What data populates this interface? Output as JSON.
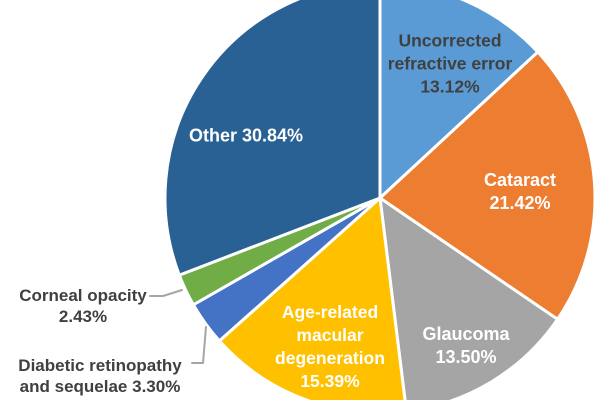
{
  "chart_data": {
    "type": "pie",
    "direction": "clockwise",
    "start_angle_deg": 0,
    "value_unit": "%",
    "slice_border_color": "#FFFFFF",
    "slices": [
      {
        "label": "Uncorrected refractive error",
        "value": 13.12,
        "color": "#5B9BD5"
      },
      {
        "label": "Cataract",
        "value": 21.42,
        "color": "#ED7D31"
      },
      {
        "label": "Glaucoma",
        "value": 13.5,
        "color": "#A5A5A5"
      },
      {
        "label": "Age-related macular degeneration",
        "value": 15.39,
        "color": "#FFC000"
      },
      {
        "label": "Diabetic retinopathy and sequelae",
        "value": 3.3,
        "color": "#4472C4"
      },
      {
        "label": "Corneal opacity",
        "value": 2.43,
        "color": "#70AD47"
      },
      {
        "label": "Other",
        "value": 30.84,
        "color": "#2A6194"
      }
    ]
  },
  "labels": {
    "uncorrected_refractive_error": {
      "text": "Uncorrected\nrefractive error\n13.12%",
      "color": "#404040"
    },
    "cataract": {
      "text": "Cataract 21.42%",
      "color": "#FFFFFF"
    },
    "glaucoma": {
      "text": "Glaucoma\n13.50%",
      "color": "#FFFFFF"
    },
    "age_related_macular_degeneration": {
      "text": "Age-related\nmacular\ndegeneration\n15.39%",
      "color": "#FFFFFF"
    },
    "other": {
      "text": "Other 30.84%",
      "color": "#FFFFFF"
    },
    "corneal_opacity": {
      "text": "Corneal opacity\n2.43%",
      "color": "#404040"
    },
    "diabetic_retinopathy_and_sequelae": {
      "text": "Diabetic retinopathy\nand sequelae 3.30%",
      "color": "#404040"
    }
  }
}
